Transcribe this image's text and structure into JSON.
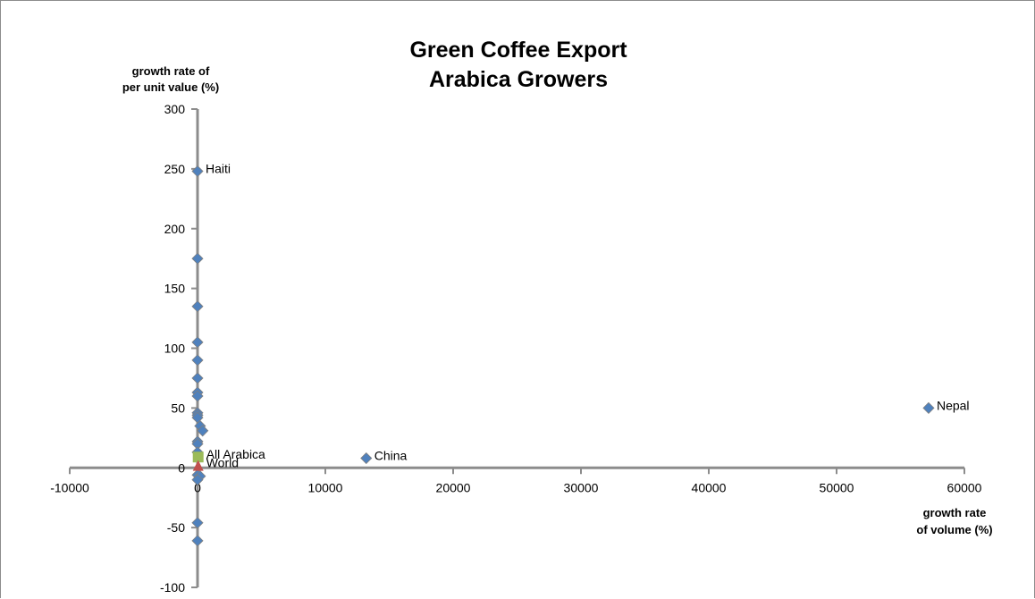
{
  "chart_data": {
    "type": "scatter",
    "title": "Green Coffee Export",
    "subtitle": "Arabica Growers",
    "ylabel_line1": "growth rate of",
    "ylabel_line2": "per unit value (%)",
    "xlabel_line1": "growth rate",
    "xlabel_line2": "of volume (%)",
    "xlim": [
      -10000,
      60000
    ],
    "ylim": [
      -100,
      300
    ],
    "xticks": [
      "-10000",
      "0",
      "10000",
      "20000",
      "30000",
      "40000",
      "50000",
      "60000"
    ],
    "yticks": [
      "300",
      "250",
      "200",
      "150",
      "100",
      "50",
      "0",
      "-50",
      "-100"
    ],
    "grid": false,
    "legend": "none",
    "colors": {
      "growers": "#4f81bd",
      "all_arabica": "#9bbb59",
      "world": "#c0504d",
      "axis": "#8c8c8c"
    },
    "series": [
      {
        "points": [
          {
            "x": 0,
            "y": 248,
            "label": "Haiti"
          },
          {
            "x": 0,
            "y": 175
          },
          {
            "x": 0,
            "y": 135
          },
          {
            "x": 0,
            "y": 105
          },
          {
            "x": 0,
            "y": 90
          },
          {
            "x": 0,
            "y": 75
          },
          {
            "x": 0,
            "y": 63
          },
          {
            "x": 0,
            "y": 60
          },
          {
            "x": 0,
            "y": 46
          },
          {
            "x": 0,
            "y": 44
          },
          {
            "x": 0,
            "y": 42
          },
          {
            "x": 200,
            "y": 35
          },
          {
            "x": 400,
            "y": 31
          },
          {
            "x": 0,
            "y": 22
          },
          {
            "x": 0,
            "y": 20
          },
          {
            "x": 0,
            "y": 13
          },
          {
            "x": 0,
            "y": -6
          },
          {
            "x": 200,
            "y": -7
          },
          {
            "x": 0,
            "y": -10
          },
          {
            "x": 0,
            "y": -46
          },
          {
            "x": 0,
            "y": -61
          },
          {
            "x": 13200,
            "y": 8,
            "label": "China"
          },
          {
            "x": 57200,
            "y": 50,
            "label": "Nepal"
          }
        ]
      },
      {
        "marker": "square",
        "points": [
          {
            "x": 50,
            "y": 9,
            "label": "All Arabica"
          }
        ]
      },
      {
        "marker": "triangle",
        "points": [
          {
            "x": 50,
            "y": 2,
            "label": "World"
          }
        ]
      }
    ]
  }
}
